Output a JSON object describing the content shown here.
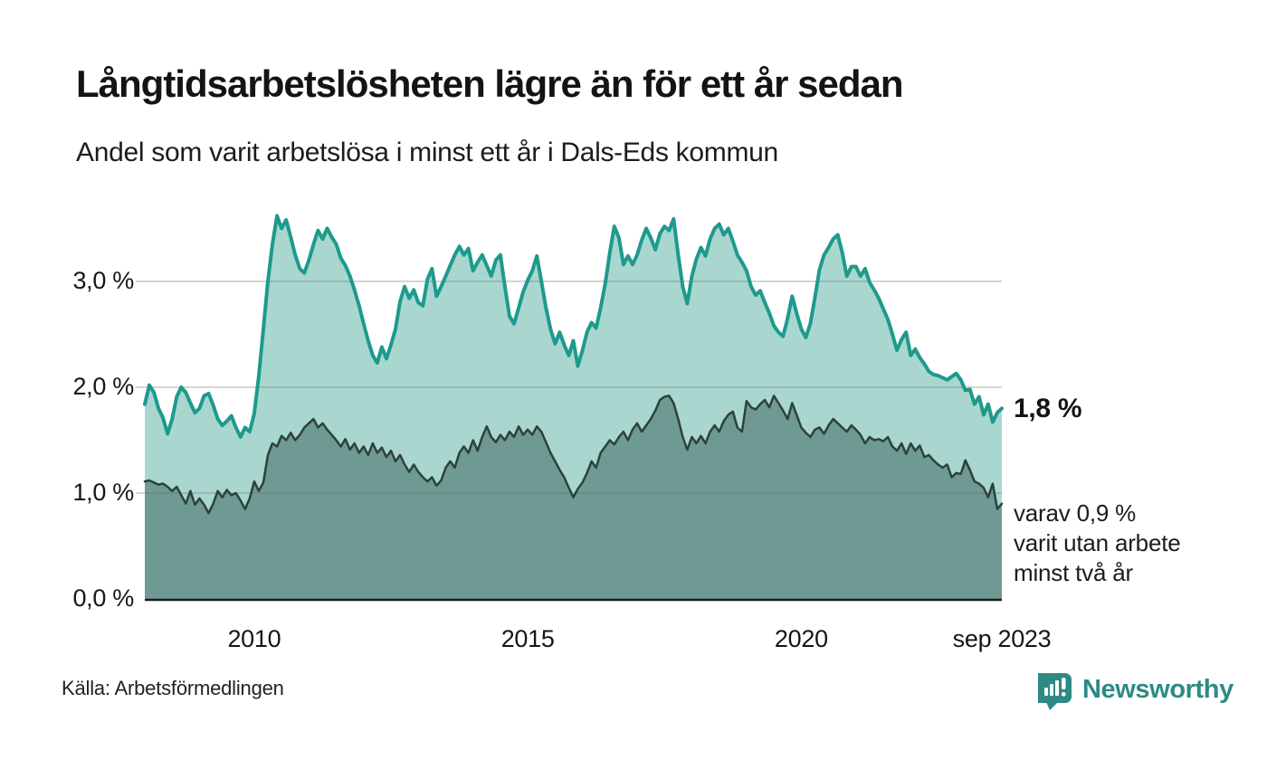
{
  "title": "Långtidsarbetslösheten lägre än för ett år sedan",
  "subtitle": "Andel som varit arbetslösa i minst ett år i Dals-Eds kommun",
  "source": "Källa: Arbetsförmedlingen",
  "branding": {
    "name": "Newsworthy",
    "logo_icon": "bar-chart-speech-bubble-icon",
    "color": "#2d8a85"
  },
  "colors": {
    "series1_line": "#1e9a8d",
    "series1_fill": "#a9d7d0",
    "series2_line": "#2d413c",
    "series2_fill": "#6f9a93",
    "grid": "rgba(105,105,105,0.28)",
    "axis": "#1d1d1b",
    "text": "#141414"
  },
  "chart_data": {
    "type": "area",
    "title": "Långtidsarbetslösheten lägre än för ett år sedan",
    "subtitle": "Andel som varit arbetslösa i minst ett år i Dals-Eds kommun",
    "x_unit": "month",
    "x_start": "2008-01",
    "x_end": "2023-09",
    "ylim": [
      0,
      3.8
    ],
    "grid": "horizontal",
    "legend_position": "none",
    "y_ticks": [
      {
        "value": 0,
        "label": "0,0 %"
      },
      {
        "value": 1,
        "label": "1,0 %"
      },
      {
        "value": 2,
        "label": "2,0 %"
      },
      {
        "value": 3,
        "label": "3,0 %"
      }
    ],
    "x_ticks": [
      {
        "month_index": 24,
        "label": "2010"
      },
      {
        "month_index": 84,
        "label": "2015"
      },
      {
        "month_index": 144,
        "label": "2020"
      },
      {
        "month_index": 188,
        "label": "sep 2023"
      }
    ],
    "series": [
      {
        "name": "Andel arbetslösa minst ett år",
        "line_color": "#1e9a8d",
        "fill_color": "#a9d7d0",
        "latest_value": 1.8,
        "values": [
          1.84,
          2.02,
          1.95,
          1.8,
          1.71,
          1.56,
          1.7,
          1.91,
          2.0,
          1.95,
          1.85,
          1.76,
          1.8,
          1.92,
          1.94,
          1.83,
          1.7,
          1.64,
          1.68,
          1.73,
          1.62,
          1.53,
          1.62,
          1.58,
          1.75,
          2.1,
          2.55,
          3.0,
          3.35,
          3.62,
          3.5,
          3.58,
          3.42,
          3.25,
          3.12,
          3.08,
          3.2,
          3.35,
          3.48,
          3.4,
          3.5,
          3.42,
          3.35,
          3.22,
          3.15,
          3.05,
          2.92,
          2.77,
          2.6,
          2.44,
          2.3,
          2.23,
          2.38,
          2.27,
          2.4,
          2.55,
          2.81,
          2.95,
          2.84,
          2.92,
          2.8,
          2.77,
          3.02,
          3.12,
          2.86,
          2.95,
          3.05,
          3.15,
          3.25,
          3.33,
          3.25,
          3.31,
          3.1,
          3.18,
          3.25,
          3.15,
          3.05,
          3.2,
          3.25,
          2.95,
          2.67,
          2.6,
          2.75,
          2.9,
          3.01,
          3.1,
          3.24,
          3.0,
          2.75,
          2.55,
          2.41,
          2.52,
          2.4,
          2.3,
          2.44,
          2.2,
          2.35,
          2.52,
          2.61,
          2.56,
          2.75,
          2.98,
          3.27,
          3.52,
          3.41,
          3.16,
          3.24,
          3.16,
          3.25,
          3.39,
          3.5,
          3.41,
          3.3,
          3.45,
          3.52,
          3.48,
          3.59,
          3.25,
          2.95,
          2.79,
          3.05,
          3.21,
          3.32,
          3.24,
          3.4,
          3.5,
          3.54,
          3.44,
          3.5,
          3.38,
          3.25,
          3.18,
          3.1,
          2.95,
          2.87,
          2.91,
          2.8,
          2.7,
          2.58,
          2.52,
          2.48,
          2.65,
          2.86,
          2.7,
          2.55,
          2.47,
          2.6,
          2.85,
          3.11,
          3.25,
          3.32,
          3.4,
          3.44,
          3.27,
          3.05,
          3.14,
          3.14,
          3.05,
          3.12,
          2.99,
          2.92,
          2.84,
          2.74,
          2.64,
          2.5,
          2.35,
          2.45,
          2.52,
          2.3,
          2.36,
          2.28,
          2.22,
          2.15,
          2.12,
          2.11,
          2.09,
          2.07,
          2.1,
          2.13,
          2.07,
          1.97,
          1.98,
          1.84,
          1.91,
          1.74,
          1.84,
          1.67,
          1.76,
          1.8
        ]
      },
      {
        "name": "Andel arbetslösa minst två år",
        "line_color": "#2d413c",
        "fill_color": "#6f9a93",
        "latest_value": 0.9,
        "values": [
          1.11,
          1.12,
          1.1,
          1.08,
          1.09,
          1.06,
          1.02,
          1.06,
          0.98,
          0.9,
          1.02,
          0.89,
          0.95,
          0.89,
          0.81,
          0.9,
          1.02,
          0.96,
          1.03,
          0.98,
          1.0,
          0.93,
          0.85,
          0.95,
          1.11,
          1.02,
          1.1,
          1.36,
          1.47,
          1.44,
          1.54,
          1.5,
          1.57,
          1.5,
          1.55,
          1.62,
          1.66,
          1.7,
          1.62,
          1.66,
          1.6,
          1.55,
          1.5,
          1.44,
          1.51,
          1.41,
          1.47,
          1.38,
          1.44,
          1.36,
          1.47,
          1.38,
          1.43,
          1.34,
          1.4,
          1.3,
          1.36,
          1.27,
          1.2,
          1.27,
          1.2,
          1.15,
          1.11,
          1.15,
          1.07,
          1.12,
          1.24,
          1.3,
          1.24,
          1.38,
          1.44,
          1.38,
          1.5,
          1.4,
          1.53,
          1.63,
          1.53,
          1.48,
          1.55,
          1.5,
          1.58,
          1.53,
          1.63,
          1.55,
          1.6,
          1.55,
          1.63,
          1.58,
          1.48,
          1.38,
          1.3,
          1.22,
          1.15,
          1.05,
          0.96,
          1.04,
          1.1,
          1.19,
          1.3,
          1.24,
          1.38,
          1.44,
          1.5,
          1.46,
          1.53,
          1.58,
          1.5,
          1.6,
          1.66,
          1.58,
          1.64,
          1.7,
          1.78,
          1.88,
          1.91,
          1.92,
          1.85,
          1.7,
          1.53,
          1.41,
          1.53,
          1.47,
          1.54,
          1.47,
          1.58,
          1.64,
          1.58,
          1.68,
          1.74,
          1.77,
          1.62,
          1.58,
          1.87,
          1.81,
          1.79,
          1.84,
          1.88,
          1.81,
          1.92,
          1.85,
          1.78,
          1.7,
          1.85,
          1.74,
          1.62,
          1.57,
          1.53,
          1.6,
          1.62,
          1.56,
          1.64,
          1.7,
          1.66,
          1.62,
          1.58,
          1.64,
          1.6,
          1.55,
          1.47,
          1.53,
          1.5,
          1.51,
          1.49,
          1.53,
          1.44,
          1.4,
          1.47,
          1.37,
          1.47,
          1.4,
          1.45,
          1.34,
          1.36,
          1.31,
          1.27,
          1.24,
          1.27,
          1.15,
          1.19,
          1.18,
          1.31,
          1.22,
          1.11,
          1.09,
          1.05,
          0.96,
          1.09,
          0.85,
          0.9
        ]
      }
    ],
    "end_labels": {
      "total": "1,8 %",
      "two_year_lines": [
        "varav 0,9 %",
        "varit utan arbete",
        "minst två år"
      ]
    }
  }
}
